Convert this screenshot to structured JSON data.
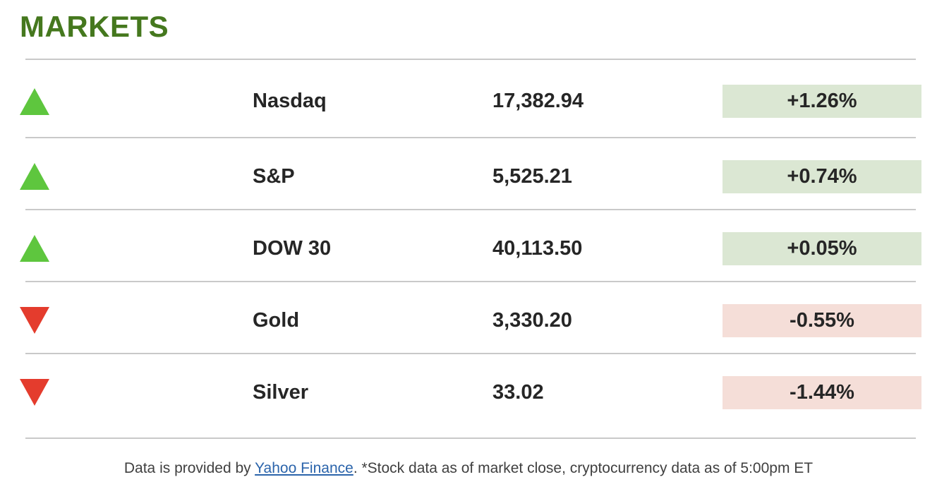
{
  "title": "MARKETS",
  "colors": {
    "title_green": "#45781e",
    "up_green": "#5ec63e",
    "down_red": "#e43c2d",
    "positive_bg": "#dbe7d3",
    "negative_bg": "#f5ded8",
    "row_text": "#262626",
    "divider": "#c9c9c9",
    "link_blue": "#2b64ab",
    "footer_text": "#404040"
  },
  "rows": [
    {
      "name": "Nasdaq",
      "value": "17,382.94",
      "change": "+1.26%",
      "direction": "up"
    },
    {
      "name": "S&P",
      "value": "5,525.21",
      "change": "+0.74%",
      "direction": "up"
    },
    {
      "name": "DOW 30",
      "value": "40,113.50",
      "change": "+0.05%",
      "direction": "up"
    },
    {
      "name": "Gold",
      "value": "3,330.20",
      "change": "-0.55%",
      "direction": "down"
    },
    {
      "name": "Silver",
      "value": "33.02",
      "change": "-1.44%",
      "direction": "down"
    }
  ],
  "footer": {
    "prefix": "Data is provided by ",
    "link_text": "Yahoo Finance",
    "suffix": ". *Stock data as of market close, cryptocurrency data as of 5:00pm ET"
  }
}
